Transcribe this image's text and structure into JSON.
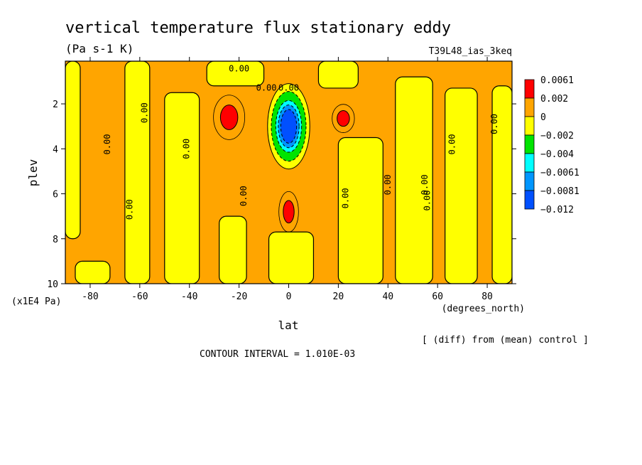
{
  "chart_data": {
    "type": "heatmap",
    "title": "vertical temperature flux stationary eddy",
    "units": "(Pa s-1 K)",
    "dataset": "T39L48_ias_3keq",
    "xlabel": "lat",
    "xunits": "(degrees_north)",
    "ylabel": "plev",
    "yunits": "(x1E4 Pa)",
    "note": "[ (diff) from (mean) control ]",
    "contour_interval": "CONTOUR INTERVAL = 1.010E-03",
    "xlim": [
      -90,
      90
    ],
    "ylim": [
      10,
      0.1
    ],
    "x_ticks": [
      -80,
      -60,
      -40,
      -20,
      0,
      20,
      40,
      60,
      80
    ],
    "x_tick_labels": [
      "-80",
      "-60",
      "-40",
      "-20",
      "0",
      "20",
      "40",
      "60",
      "80"
    ],
    "y_ticks": [
      2,
      4,
      6,
      8,
      10
    ],
    "y_tick_labels": [
      "2",
      "4",
      "6",
      "8",
      "10"
    ],
    "contour_labels": [
      {
        "x": -64,
        "y": 6.7,
        "text": "0.00"
      },
      {
        "x": -73,
        "y": 3.8,
        "text": "0.00"
      },
      {
        "x": -58,
        "y": 2.4,
        "text": "0.00"
      },
      {
        "x": -41,
        "y": 4.0,
        "text": "0.00"
      },
      {
        "x": -18,
        "y": 6.1,
        "text": "0.00"
      },
      {
        "x": -20,
        "y": 0.45,
        "text": "0.00"
      },
      {
        "x": -9,
        "y": 1.3,
        "text": "0.00"
      },
      {
        "x": 0,
        "y": 1.3,
        "text": "0.00"
      },
      {
        "x": 23,
        "y": 6.2,
        "text": "0.00"
      },
      {
        "x": 40,
        "y": 5.6,
        "text": "0.00"
      },
      {
        "x": 55,
        "y": 5.6,
        "text": "0.00"
      },
      {
        "x": 56,
        "y": 6.3,
        "text": "0.00"
      },
      {
        "x": 66,
        "y": 3.8,
        "text": "0.00"
      },
      {
        "x": 83,
        "y": 2.9,
        "text": "0.00"
      }
    ],
    "legend": {
      "placement": "right",
      "levels": [
        {
          "label": "0.0061",
          "color": "#ff0000"
        },
        {
          "label": "0.002",
          "color": "#ffa500"
        },
        {
          "label": "0",
          "color": "#ffff00"
        },
        {
          "label": "−0.002",
          "color": "#00e400"
        },
        {
          "label": "−0.004",
          "color": "#00ffff"
        },
        {
          "label": "−0.0061",
          "color": "#0096ff"
        },
        {
          "label": "−0.0081",
          "color": "#0050ff"
        },
        {
          "label": "−0.012",
          "color": null
        }
      ]
    },
    "regions": {
      "background": "#ffa500",
      "yellow_bands": [
        {
          "lat": [
            -90,
            -84
          ],
          "plev": [
            0.1,
            8.0
          ]
        },
        {
          "lat": [
            -86,
            -72
          ],
          "plev": [
            9.0,
            10
          ]
        },
        {
          "lat": [
            -66,
            -56
          ],
          "plev": [
            0.1,
            10
          ]
        },
        {
          "lat": [
            -50,
            -36
          ],
          "plev": [
            1.5,
            10
          ]
        },
        {
          "lat": [
            -33,
            -10
          ],
          "plev": [
            0.1,
            1.2
          ]
        },
        {
          "lat": [
            -28,
            -17
          ],
          "plev": [
            7.0,
            10
          ]
        },
        {
          "lat": [
            -8,
            10
          ],
          "plev": [
            7.7,
            10
          ]
        },
        {
          "lat": [
            12,
            28
          ],
          "plev": [
            0.1,
            1.3
          ]
        },
        {
          "lat": [
            20,
            38
          ],
          "plev": [
            3.5,
            10
          ]
        },
        {
          "lat": [
            43,
            58
          ],
          "plev": [
            0.8,
            10
          ]
        },
        {
          "lat": [
            63,
            76
          ],
          "plev": [
            1.3,
            10
          ]
        },
        {
          "lat": [
            82,
            90
          ],
          "plev": [
            1.2,
            10
          ]
        }
      ],
      "positive_cores": [
        {
          "lat": -24,
          "plev": 2.6,
          "radius_lat": 3.5,
          "radius_plev": 0.55,
          "color": "#ff0000"
        },
        {
          "lat": 22,
          "plev": 2.65,
          "radius_lat": 2.5,
          "radius_plev": 0.35,
          "color": "#ff0000"
        },
        {
          "lat": 0,
          "plev": 6.8,
          "radius_lat": 2.2,
          "radius_plev": 0.5,
          "color": "#ff0000"
        }
      ],
      "negative_core": {
        "lat": 0,
        "plev": 3.0,
        "layers": [
          {
            "radius_lat": 8.5,
            "radius_plev": 1.9,
            "color": "#ffff00"
          },
          {
            "radius_lat": 7.0,
            "radius_plev": 1.55,
            "color": "#00e400"
          },
          {
            "radius_lat": 5.2,
            "radius_plev": 1.15,
            "color": "#00ffff"
          },
          {
            "radius_lat": 4.2,
            "radius_plev": 0.95,
            "color": "#0096ff"
          },
          {
            "radius_lat": 3.2,
            "radius_plev": 0.75,
            "color": "#0050ff"
          }
        ]
      }
    }
  }
}
